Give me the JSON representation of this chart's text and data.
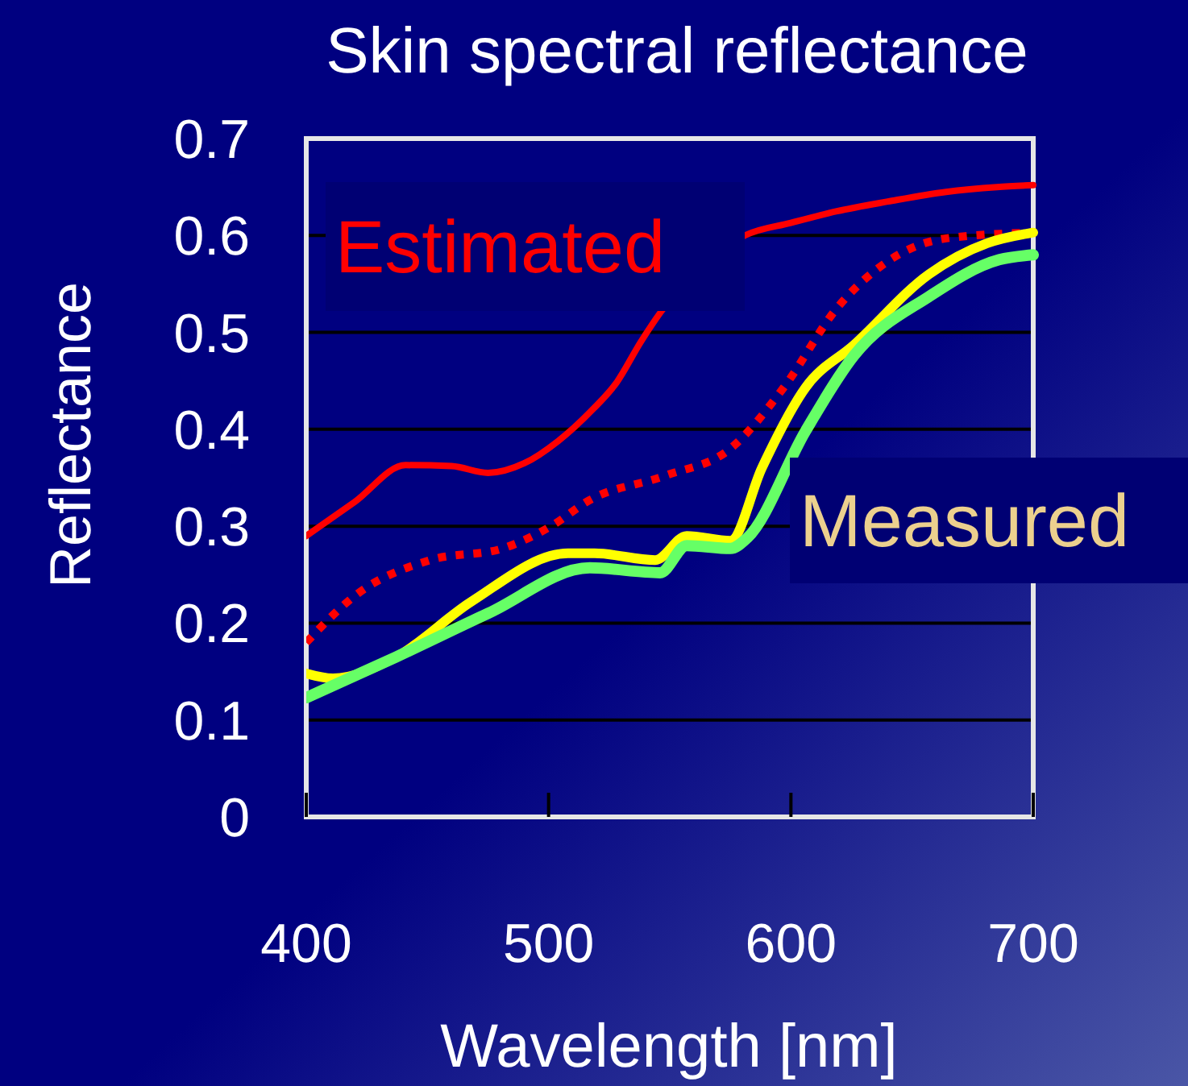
{
  "chart_data": {
    "type": "line",
    "title": "Skin spectral reflectance",
    "xlabel": "Wavelength [nm]",
    "ylabel": "Reflectance",
    "xlim": [
      400,
      700
    ],
    "xticks": [
      400,
      500,
      600,
      700
    ],
    "ylim": [
      0,
      0.7
    ],
    "yticks": [
      0,
      0.1,
      0.2,
      0.3,
      0.4,
      0.5,
      0.6,
      0.7
    ],
    "grid": "y",
    "annotations": [
      "Estimated",
      "Measured"
    ],
    "series": [
      {
        "color": "#ff0000",
        "line_style": "solid",
        "x": [
          400,
          420,
          441,
          460,
          475,
          490,
          504,
          518,
          528,
          538,
          546,
          581,
          600,
          619,
          640,
          664,
          685,
          700
        ],
        "values": [
          0.29,
          0.325,
          0.363,
          0.362,
          0.355,
          0.365,
          0.388,
          0.42,
          0.448,
          0.49,
          0.52,
          0.6,
          0.613,
          0.625,
          0.635,
          0.645,
          0.65,
          0.652
        ]
      },
      {
        "color": "#ff0000",
        "line_style": "dotted",
        "x": [
          400,
          421,
          451,
          481,
          501,
          517,
          548,
          575,
          597,
          619,
          641,
          664,
          700
        ],
        "values": [
          0.18,
          0.23,
          0.265,
          0.277,
          0.3,
          0.327,
          0.352,
          0.38,
          0.443,
          0.525,
          0.575,
          0.597,
          0.603
        ]
      },
      {
        "color": "#ffff00",
        "line_style": "solid",
        "x": [
          400,
          411,
          437,
          468,
          508,
          519,
          544,
          557,
          575,
          588,
          606,
          626,
          657,
          681,
          700
        ],
        "values": [
          0.148,
          0.143,
          0.165,
          0.222,
          0.272,
          0.272,
          0.265,
          0.29,
          0.285,
          0.36,
          0.443,
          0.487,
          0.56,
          0.592,
          0.603
        ]
      },
      {
        "color": "#66ff66",
        "line_style": "solid",
        "x": [
          400,
          437,
          475,
          517,
          546,
          557,
          575,
          582,
          606,
          626,
          657,
          686,
          700
        ],
        "values": [
          0.123,
          0.165,
          0.21,
          0.257,
          0.252,
          0.28,
          0.277,
          0.288,
          0.398,
          0.476,
          0.537,
          0.575,
          0.58
        ]
      }
    ]
  }
}
